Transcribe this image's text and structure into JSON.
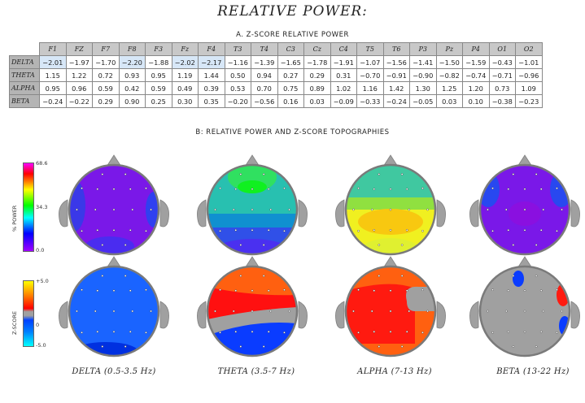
{
  "title": "RELATIVE POWER:",
  "section_a": "A. Z-SCORE RELATIVE POWER",
  "section_b": "B: RELATIVE POWER AND Z-SCORE TOPOGRAPHIES",
  "power_scale": {
    "label": "% POWER",
    "max": "68.6",
    "mid": "34.3",
    "min": "0.0"
  },
  "z_scale": {
    "label": "Z-SCORE",
    "max": "+5.0",
    "mid": "0",
    "min": "-5.0"
  },
  "chart_data": [
    {
      "type": "table",
      "title": "A. Z-SCORE RELATIVE POWER",
      "columns": [
        "F1",
        "FZ",
        "F7",
        "F8",
        "F3",
        "Fz",
        "F4",
        "T3",
        "T4",
        "C3",
        "Cz",
        "C4",
        "T5",
        "T6",
        "P3",
        "Pz",
        "P4",
        "O1",
        "O2"
      ],
      "rows": [
        {
          "name": "DELTA",
          "values": [
            "-2.01",
            "-1.97",
            "-1.70",
            "-2.20",
            "-1.88",
            "-2.02",
            "-2.17",
            "-1.16",
            "-1.39",
            "-1.65",
            "-1.78",
            "-1.91",
            "-1.07",
            "-1.56",
            "-1.41",
            "-1.50",
            "-1.59",
            "-0.43",
            "-1.01"
          ]
        },
        {
          "name": "THETA",
          "values": [
            "1.15",
            "1.22",
            "0.72",
            "0.93",
            "0.95",
            "1.19",
            "1.44",
            "0.50",
            "0.94",
            "0.27",
            "0.29",
            "0.31",
            "-0.70",
            "-0.91",
            "-0.90",
            "-0.82",
            "-0.74",
            "-0.71",
            "-0.96"
          ]
        },
        {
          "name": "ALPHA",
          "values": [
            "0.95",
            "0.96",
            "0.59",
            "0.42",
            "0.59",
            "0.49",
            "0.39",
            "0.53",
            "0.70",
            "0.75",
            "0.89",
            "1.02",
            "1.16",
            "1.42",
            "1.30",
            "1.25",
            "1.20",
            "0.73",
            "1.09"
          ]
        },
        {
          "name": "BETA",
          "values": [
            "-0.24",
            "-0.22",
            "0.29",
            "0.90",
            "0.25",
            "0.30",
            "0.35",
            "-0.20",
            "-0.56",
            "0.16",
            "0.03",
            "-0.09",
            "-0.33",
            "-0.24",
            "-0.05",
            "0.03",
            "0.10",
            "-0.38",
            "-0.23"
          ]
        }
      ],
      "highlight_threshold": -2.0
    },
    {
      "type": "heatmap",
      "title": "B: RELATIVE POWER AND Z-SCORE TOPOGRAPHIES",
      "bands": [
        "DELTA (0.5-3.5 Hz)",
        "THETA (3.5-7 Hz)",
        "ALPHA (7-13 Hz)",
        "BETA (13-22 Hz)"
      ],
      "relative_power_range": [
        0.0,
        68.6
      ],
      "zscore_range": [
        -5.0,
        5.0
      ]
    }
  ],
  "colors": {
    "table_header": "#c8c8c8",
    "row_header": "#b4b4b4",
    "highlight": "#d7e7f7",
    "head_gray": "#a0a0a0"
  }
}
